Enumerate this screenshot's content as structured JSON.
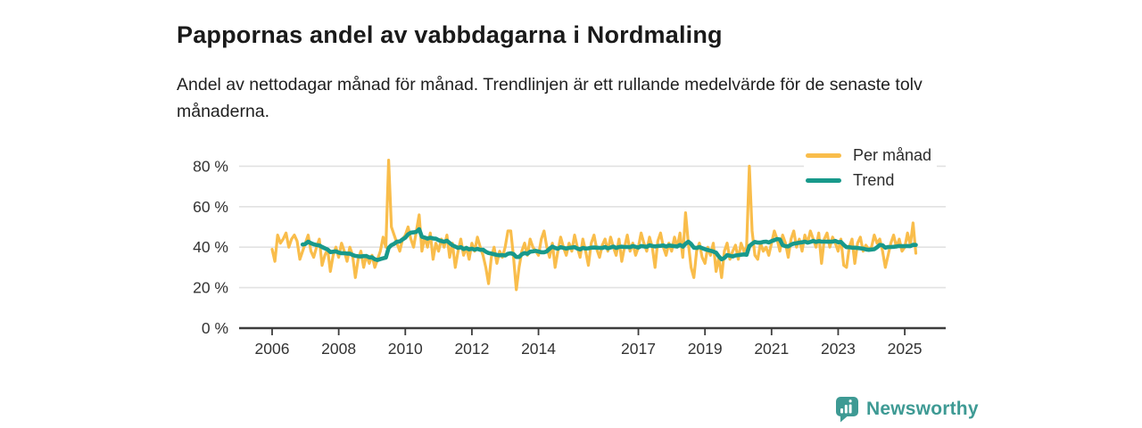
{
  "header": {
    "title": "Pappornas andel av vabbdagarna i Nordmaling",
    "subtitle": "Andel av nettodagar månad för månad. Trendlinjen är ett rullande medelvärde för de senaste tolv månaderna."
  },
  "chart_data": {
    "type": "line",
    "title": "Pappornas andel av vabbdagarna i Nordmaling",
    "unit": "percent",
    "x_interval": "monthly",
    "x_start": "2006-01",
    "x_end": "2025-05",
    "ylim": [
      0,
      88
    ],
    "grid": "horizontal",
    "legend_position": "top-right",
    "y_ticks": [
      0,
      20,
      40,
      60,
      80
    ],
    "y_tick_labels": [
      "0 %",
      "20 %",
      "40 %",
      "60 %",
      "80 %"
    ],
    "x_tick_years": [
      2006,
      2008,
      2010,
      2012,
      2014,
      2017,
      2019,
      2021,
      2023,
      2025
    ],
    "colors": {
      "per_month": "#f9bd4b",
      "trend": "#18998b",
      "gridline": "#e2e2e2",
      "axis": "#3d3d3d",
      "tick_text": "#333333"
    },
    "series": [
      {
        "name": "Per månad",
        "color": "#f9bd4b",
        "values": [
          39,
          33,
          46,
          42,
          44,
          47,
          40,
          44,
          46,
          43,
          34,
          38,
          42,
          46,
          38,
          35,
          40,
          44,
          31,
          36,
          39,
          28,
          36,
          40,
          35,
          42,
          38,
          33,
          40,
          36,
          25,
          34,
          38,
          30,
          36,
          32,
          36,
          30,
          34,
          38,
          45,
          40,
          83,
          50,
          46,
          42,
          38,
          44,
          46,
          50,
          44,
          40,
          48,
          56,
          38,
          45,
          40,
          47,
          34,
          42,
          38,
          44,
          40,
          46,
          35,
          42,
          30,
          38,
          44,
          36,
          40,
          34,
          42,
          38,
          45,
          40,
          36,
          30,
          22,
          35,
          40,
          32,
          38,
          35,
          40,
          48,
          48,
          35,
          19,
          30,
          38,
          42,
          36,
          44,
          40,
          38,
          36,
          44,
          48,
          40,
          35,
          42,
          30,
          38,
          45,
          40,
          36,
          42,
          38,
          46,
          40,
          35,
          44,
          38,
          31,
          42,
          46,
          39,
          35,
          41,
          44,
          38,
          45,
          40,
          36,
          44,
          33,
          40,
          46,
          38,
          42,
          36,
          40,
          47,
          42,
          38,
          45,
          40,
          30,
          43,
          47,
          40,
          36,
          42,
          38,
          45,
          40,
          47,
          35,
          57,
          42,
          30,
          25,
          38,
          42,
          35,
          32,
          40,
          36,
          42,
          28,
          35,
          25,
          38,
          42,
          34,
          38,
          41,
          34,
          42,
          38,
          40,
          80,
          48,
          36,
          34,
          42,
          38,
          40,
          36,
          42,
          48,
          44,
          38,
          46,
          42,
          35,
          44,
          48,
          40,
          44,
          38,
          46,
          42,
          48,
          44,
          40,
          47,
          32,
          44,
          47,
          40,
          45,
          42,
          38,
          44,
          31,
          30,
          40,
          44,
          32,
          42,
          45,
          38,
          41,
          39,
          40,
          46,
          42,
          44,
          38,
          30,
          36,
          42,
          46,
          40,
          44,
          38,
          40,
          47,
          41,
          52,
          37
        ]
      },
      {
        "name": "Trend",
        "color": "#18998b",
        "derived_from": "Per månad",
        "derivation": "rolling mean of last 12 months"
      }
    ]
  },
  "footer": {
    "brand": "Newsworthy"
  }
}
